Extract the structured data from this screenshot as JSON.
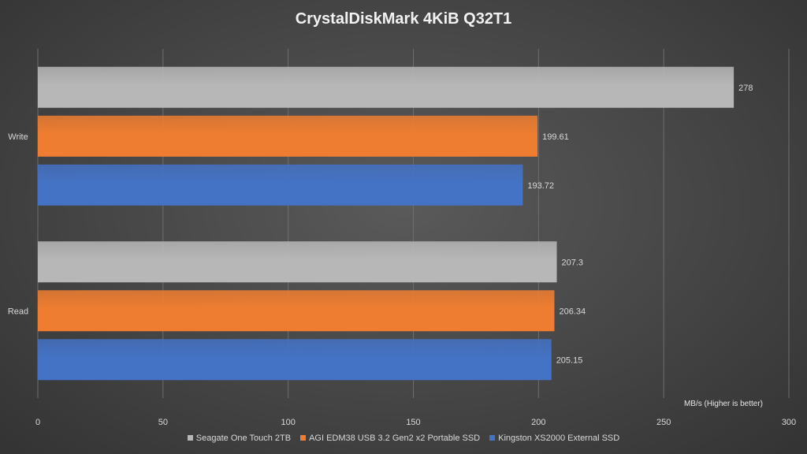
{
  "chart_data": {
    "type": "bar",
    "orientation": "horizontal",
    "title": "CrystalDiskMark 4KiB Q32T1",
    "unit_label": "MB/s (Higher is better)",
    "categories": [
      "Write",
      "Read"
    ],
    "series": [
      {
        "name": "Seagate One Touch 2TB",
        "color": "#b7b7b7",
        "values": [
          278,
          207.3
        ],
        "labels": [
          "278",
          "207.3"
        ]
      },
      {
        "name": "AGI EDM38 USB 3.2 Gen2 x2 Portable SSD",
        "color": "#ee7d31",
        "values": [
          199.61,
          206.34
        ],
        "labels": [
          "199.61",
          "206.34"
        ]
      },
      {
        "name": "Kingston XS2000 External SSD",
        "color": "#4472c4",
        "values": [
          193.72,
          205.15
        ],
        "labels": [
          "193.72",
          "205.15"
        ]
      }
    ],
    "xlim": [
      0,
      300
    ],
    "xticks": [
      0,
      50,
      100,
      150,
      200,
      250,
      300
    ],
    "grid": true,
    "legend_position": "bottom"
  }
}
